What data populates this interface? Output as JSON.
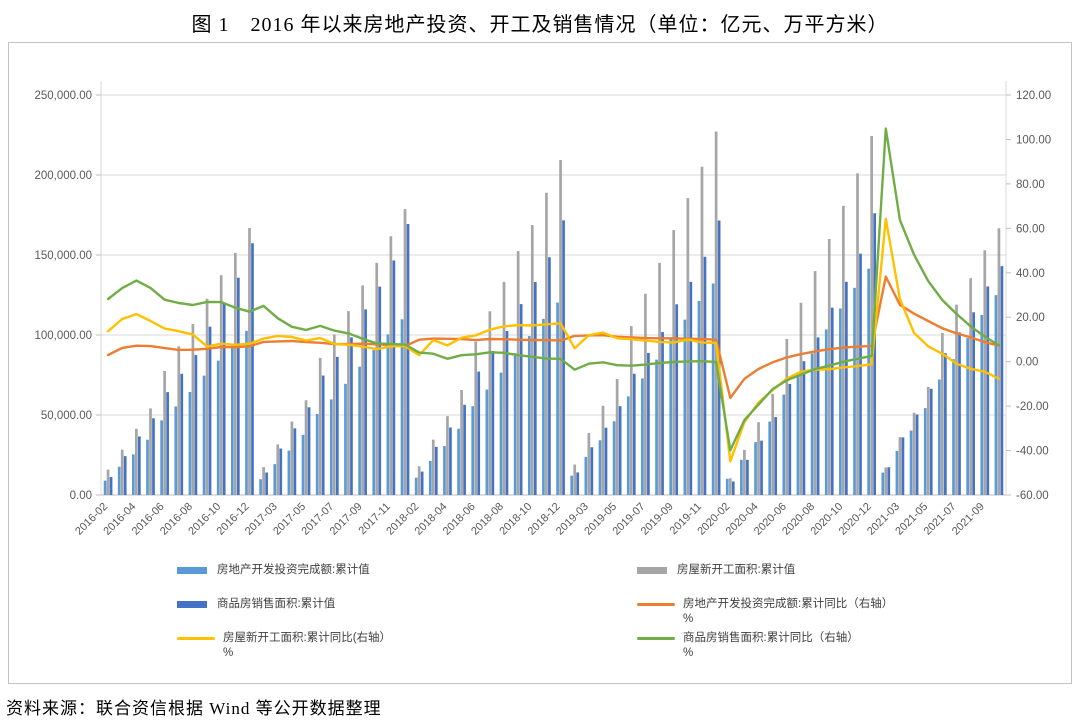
{
  "title": "图 1　2016 年以来房地产投资、开工及销售情况（单位：亿元、万平方米）",
  "source": "资料来源：联合资信根据 Wind 等公开数据整理",
  "chart_data": {
    "type": "combo-bar-line",
    "x_tick_interval": 2,
    "left_axis": {
      "min": 0,
      "max": 250000,
      "tick_labels": [
        "0.00",
        "50,000.00",
        "100,000.00",
        "150,000.00",
        "200,000.00",
        "250,000.00"
      ]
    },
    "right_axis": {
      "min": -60,
      "max": 120,
      "tick_labels": [
        "-60.00",
        "-40.00",
        "-20.00",
        "0.00",
        "20.00",
        "40.00",
        "60.00",
        "80.00",
        "100.00",
        "120.00"
      ]
    },
    "x": [
      "2016-02",
      "2016-03",
      "2016-04",
      "2016-05",
      "2016-06",
      "2016-07",
      "2016-08",
      "2016-09",
      "2016-10",
      "2016-11",
      "2016-12",
      "2017-02",
      "2017-03",
      "2017-04",
      "2017-05",
      "2017-06",
      "2017-07",
      "2017-08",
      "2017-09",
      "2017-10",
      "2017-11",
      "2017-12",
      "2018-02",
      "2018-03",
      "2018-04",
      "2018-05",
      "2018-06",
      "2018-07",
      "2018-08",
      "2018-09",
      "2018-10",
      "2018-11",
      "2018-12",
      "2019-02",
      "2019-03",
      "2019-04",
      "2019-05",
      "2019-06",
      "2019-07",
      "2019-08",
      "2019-09",
      "2019-10",
      "2019-11",
      "2019-12",
      "2020-02",
      "2020-03",
      "2020-04",
      "2020-05",
      "2020-06",
      "2020-07",
      "2020-08",
      "2020-09",
      "2020-10",
      "2020-11",
      "2020-12",
      "2021-02",
      "2021-03",
      "2021-04",
      "2021-05",
      "2021-06",
      "2021-07",
      "2021-08",
      "2021-09",
      "2021-10"
    ],
    "series": [
      {
        "name": "房地产开发投资完成额:累计值",
        "type": "bar",
        "axis": "left",
        "color": "#5B9BD5",
        "values": [
          8987,
          17677,
          25376,
          34564,
          46631,
          55361,
          64387,
          74598,
          83975,
          93387,
          102581,
          9854,
          19292,
          27732,
          37595,
          50610,
          59761,
          69494,
          80195,
          90544,
          100387,
          109799,
          10831,
          21291,
          30592,
          41420,
          55531,
          65886,
          76519,
          88665,
          99325,
          110083,
          120264,
          12090,
          23803,
          34217,
          46075,
          61609,
          72843,
          84589,
          98008,
          109603,
          121265,
          132194,
          10115,
          21963,
          33103,
          45920,
          62780,
          75325,
          88454,
          103484,
          116556,
          129492,
          141443,
          13986,
          27576,
          40240,
          54318,
          72179,
          84895,
          98060,
          112568,
          124934
        ]
      },
      {
        "name": "房屋新开工面积:累计值",
        "type": "bar",
        "axis": "left",
        "color": "#A6A6A6",
        "values": [
          15803,
          28281,
          41361,
          54099,
          77537,
          92944,
          106834,
          122655,
          137375,
          151303,
          166928,
          17447,
          31562,
          45905,
          59239,
          85720,
          100371,
          114953,
          130995,
          145068,
          161743,
          178654,
          17953,
          34615,
          49302,
          65636,
          95875,
          114835,
          133230,
          152478,
          168714,
          188916,
          209342,
          19030,
          38734,
          55761,
          72528,
          105558,
          125744,
          145088,
          165591,
          185585,
          205163,
          227154,
          10486,
          28203,
          45501,
          63244,
          97536,
          120086,
          139917,
          160033,
          180718,
          201060,
          224433,
          17229,
          36163,
          51372,
          67606,
          101288,
          118948,
          135502,
          152944,
          166736
        ]
      },
      {
        "name": "商品房销售面积:累计值",
        "type": "bar",
        "axis": "left",
        "color": "#4472C4",
        "values": [
          11235,
          24299,
          36577,
          47954,
          64302,
          75760,
          87451,
          105185,
          120338,
          135829,
          157349,
          14054,
          29036,
          41655,
          54820,
          74662,
          86351,
          98539,
          116006,
          130254,
          146568,
          169408,
          14633,
          30088,
          42192,
          56409,
          77143,
          89990,
          102474,
          119313,
          133117,
          148604,
          171654,
          14102,
          29829,
          42085,
          55518,
          75786,
          88783,
          101849,
          119179,
          133251,
          148905,
          171558,
          8475,
          21978,
          33973,
          48703,
          69404,
          83631,
          98486,
          117073,
          133248,
          150834,
          176086,
          17363,
          36007,
          50305,
          66383,
          88635,
          101648,
          114193,
          130332,
          143041
        ]
      },
      {
        "name": "房地产开发投资完成额:累计同比（右轴）%",
        "type": "line",
        "axis": "right",
        "color": "#ED7D31",
        "values": [
          3.0,
          6.2,
          7.2,
          7.0,
          6.1,
          5.3,
          5.4,
          5.8,
          6.6,
          6.5,
          6.9,
          8.9,
          9.1,
          9.3,
          8.8,
          8.5,
          7.9,
          7.9,
          8.1,
          7.8,
          7.5,
          7.0,
          9.9,
          10.4,
          10.3,
          10.2,
          9.7,
          10.2,
          10.1,
          9.9,
          9.7,
          9.7,
          9.5,
          11.6,
          11.8,
          11.9,
          11.2,
          10.9,
          10.6,
          10.5,
          10.5,
          10.3,
          10.2,
          9.9,
          -16.3,
          -7.7,
          -3.3,
          -0.3,
          1.9,
          3.4,
          4.6,
          5.6,
          6.3,
          6.8,
          7.0,
          38.3,
          25.6,
          21.6,
          18.3,
          15.0,
          12.7,
          10.9,
          8.8,
          7.2
        ]
      },
      {
        "name": "房屋新开工面积:累计同比(右轴）%",
        "type": "line",
        "axis": "right",
        "color": "#FFC000",
        "values": [
          13.7,
          19.2,
          21.4,
          18.3,
          14.9,
          13.7,
          12.2,
          6.8,
          8.1,
          7.6,
          8.1,
          10.4,
          11.6,
          11.1,
          9.5,
          10.6,
          8.0,
          7.6,
          6.8,
          5.6,
          6.9,
          7.0,
          2.9,
          9.7,
          7.3,
          10.8,
          11.8,
          14.4,
          15.9,
          16.4,
          16.3,
          16.8,
          17.2,
          6.0,
          11.9,
          13.1,
          10.5,
          10.1,
          9.5,
          8.9,
          8.6,
          10.0,
          8.6,
          8.5,
          -44.9,
          -27.2,
          -18.4,
          -12.8,
          -7.6,
          -4.5,
          -3.6,
          -3.4,
          -2.6,
          -2.0,
          -1.2,
          64.3,
          28.2,
          12.9,
          6.9,
          3.5,
          -0.9,
          -3.2,
          -4.5,
          -7.7
        ]
      },
      {
        "name": "商品房销售面积:累计同比（右轴）%",
        "type": "line",
        "axis": "right",
        "color": "#70AD47",
        "values": [
          28.2,
          33.1,
          36.5,
          33.2,
          27.9,
          26.4,
          25.5,
          26.9,
          26.8,
          24.3,
          22.5,
          25.1,
          19.5,
          15.7,
          14.3,
          16.1,
          14.0,
          12.7,
          10.3,
          8.2,
          7.9,
          7.7,
          4.1,
          3.6,
          1.3,
          2.9,
          3.3,
          4.2,
          4.0,
          2.9,
          2.2,
          1.4,
          1.3,
          -3.6,
          -0.9,
          -0.3,
          -1.6,
          -1.8,
          -1.3,
          -0.6,
          -0.1,
          0.1,
          0.2,
          -0.1,
          -39.9,
          -26.3,
          -19.3,
          -12.3,
          -8.4,
          -5.8,
          -3.3,
          -1.8,
          0.0,
          1.3,
          2.6,
          104.9,
          63.8,
          48.1,
          36.3,
          27.7,
          21.5,
          15.9,
          11.3,
          7.3
        ]
      }
    ],
    "legend": [
      {
        "col": 0,
        "row": 0,
        "swatch": "bar",
        "color": "#5B9BD5",
        "label": "房地产开发投资完成额:累计值",
        "sublabel": ""
      },
      {
        "col": 0,
        "row": 1,
        "swatch": "bar",
        "color": "#4472C4",
        "label": "商品房销售面积:累计值",
        "sublabel": ""
      },
      {
        "col": 0,
        "row": 2,
        "swatch": "line",
        "color": "#FFC000",
        "label": "房屋新开工面积:累计同比(右轴）",
        "sublabel": "%"
      },
      {
        "col": 1,
        "row": 0,
        "swatch": "bar",
        "color": "#A6A6A6",
        "label": "房屋新开工面积:累计值",
        "sublabel": ""
      },
      {
        "col": 1,
        "row": 1,
        "swatch": "line",
        "color": "#ED7D31",
        "label": "房地产开发投资完成额:累计同比（右轴）",
        "sublabel": "%"
      },
      {
        "col": 1,
        "row": 2,
        "swatch": "line",
        "color": "#70AD47",
        "label": "商品房销售面积:累计同比（右轴）",
        "sublabel": "%"
      }
    ]
  }
}
